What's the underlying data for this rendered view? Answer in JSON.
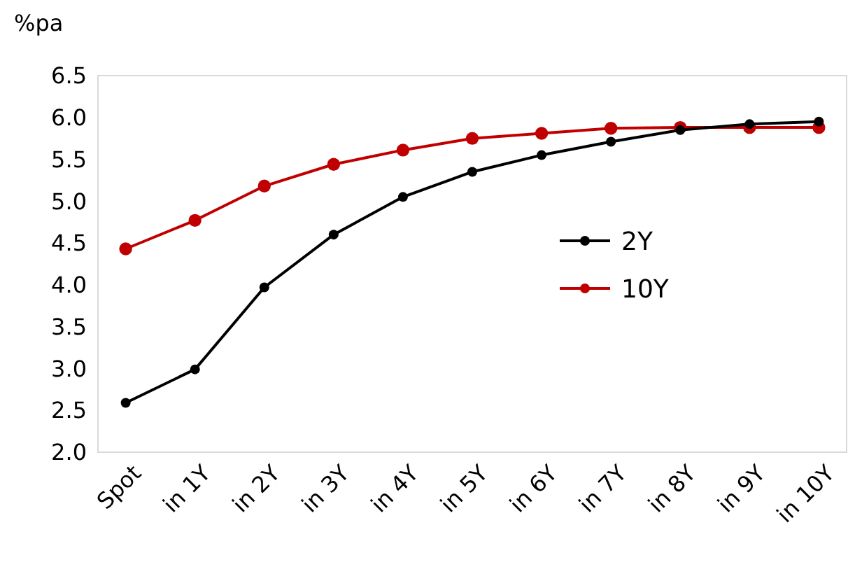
{
  "chart_data": {
    "type": "line",
    "ylabel": "%pa",
    "categories": [
      "Spot",
      "in 1Y",
      "in 2Y",
      "in 3Y",
      "in 4Y",
      "in 5Y",
      "in 6Y",
      "in 7Y",
      "in 8Y",
      "in 9Y",
      "in 10Y"
    ],
    "series": [
      {
        "name": "2Y",
        "color": "#000000",
        "values": [
          2.59,
          2.99,
          3.97,
          4.6,
          5.05,
          5.35,
          5.55,
          5.71,
          5.85,
          5.92,
          5.95
        ]
      },
      {
        "name": "10Y",
        "color": "#c00000",
        "values": [
          4.43,
          4.77,
          5.18,
          5.44,
          5.61,
          5.75,
          5.81,
          5.87,
          5.88,
          5.88,
          5.88
        ]
      }
    ],
    "ylim": [
      2.0,
      6.5
    ],
    "yticks": [
      {
        "value": 2.0,
        "label": "2.0"
      },
      {
        "value": 2.5,
        "label": "2.5"
      },
      {
        "value": 3.0,
        "label": "3.0"
      },
      {
        "value": 3.5,
        "label": "3.5"
      },
      {
        "value": 4.0,
        "label": "4.0"
      },
      {
        "value": 4.5,
        "label": "4.5"
      },
      {
        "value": 5.0,
        "label": "5.0"
      },
      {
        "value": 5.5,
        "label": "5.5"
      },
      {
        "value": 6.0,
        "label": "6.0"
      },
      {
        "value": 6.5,
        "label": "6.5"
      }
    ],
    "grid": false,
    "legend": "right",
    "marker": "circle",
    "line_style": "solid"
  }
}
